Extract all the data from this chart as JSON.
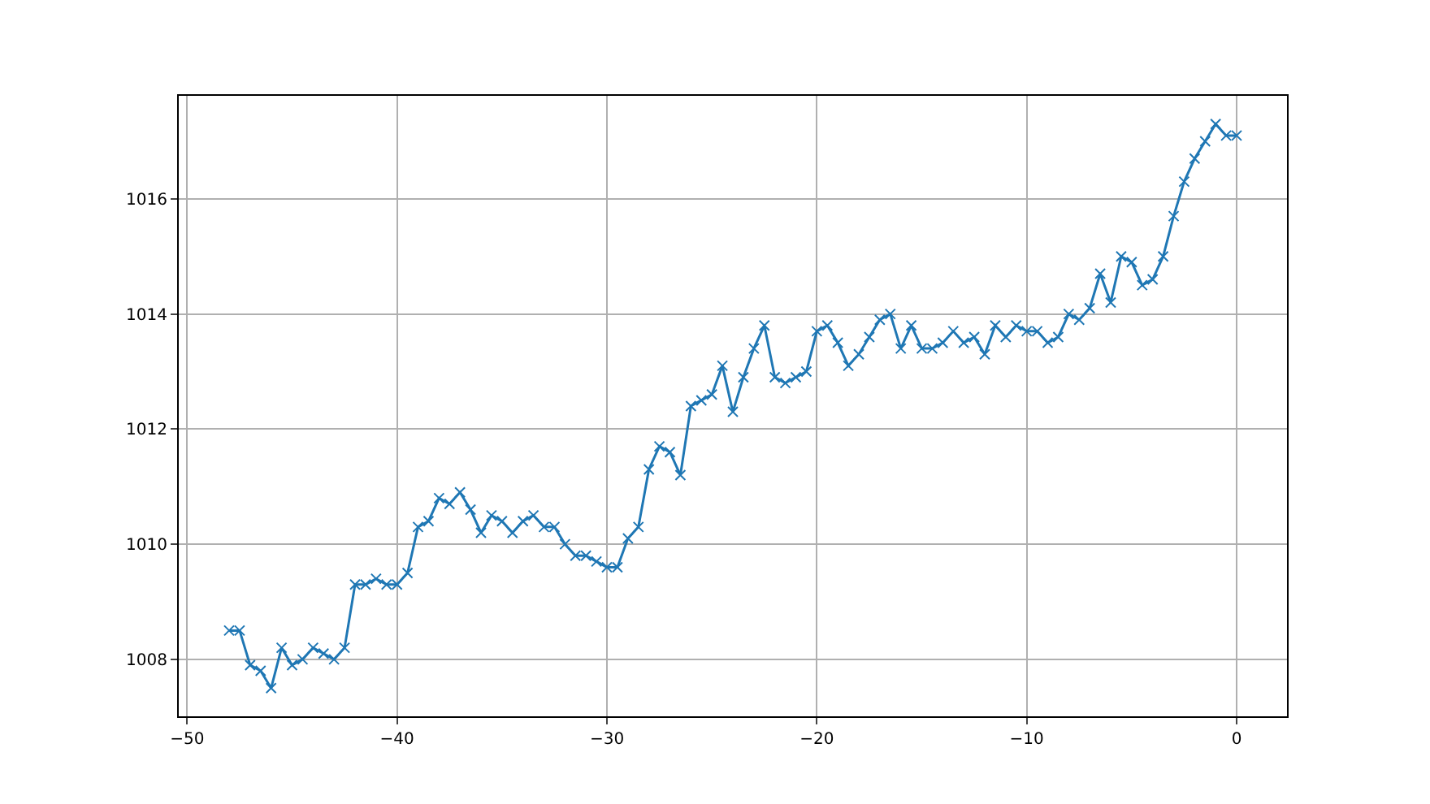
{
  "chart_data": {
    "type": "line",
    "x": [
      -48,
      -47.5,
      -47,
      -46.5,
      -46,
      -45.5,
      -45,
      -44.5,
      -44,
      -43.5,
      -43,
      -42.5,
      -42,
      -41.5,
      -41,
      -40.5,
      -40,
      -39.5,
      -39,
      -38.5,
      -38,
      -37.5,
      -37,
      -36.5,
      -36,
      -35.5,
      -35,
      -34.5,
      -34,
      -33.5,
      -33,
      -32.5,
      -32,
      -31.5,
      -31,
      -30.5,
      -30,
      -29.5,
      -29,
      -28.5,
      -28,
      -27.5,
      -27,
      -26.5,
      -26,
      -25.5,
      -25,
      -24.5,
      -24,
      -23.5,
      -23,
      -22.5,
      -22,
      -21.5,
      -21,
      -20.5,
      -20,
      -19.5,
      -19,
      -18.5,
      -18,
      -17.5,
      -17,
      -16.5,
      -16,
      -15.5,
      -15,
      -14.5,
      -14,
      -13.5,
      -13,
      -12.5,
      -12,
      -11.5,
      -11,
      -10.5,
      -10,
      -9.5,
      -9,
      -8.5,
      -8,
      -7.5,
      -7,
      -6.5,
      -6,
      -5.5,
      -5,
      -4.5,
      -4,
      -3.5,
      -3,
      -2.5,
      -2,
      -1.5,
      -1,
      -0.5,
      0
    ],
    "series": [
      {
        "color": "#1f77b4",
        "values": [
          1008.5,
          1008.5,
          1007.9,
          1007.8,
          1007.5,
          1008.2,
          1007.9,
          1008.0,
          1008.2,
          1008.1,
          1008.0,
          1008.2,
          1009.3,
          1009.3,
          1009.4,
          1009.3,
          1009.3,
          1009.5,
          1010.3,
          1010.4,
          1010.8,
          1010.7,
          1010.9,
          1010.6,
          1010.2,
          1010.5,
          1010.4,
          1010.2,
          1010.4,
          1010.5,
          1010.3,
          1010.3,
          1010.0,
          1009.8,
          1009.8,
          1009.7,
          1009.6,
          1009.6,
          1010.1,
          1010.3,
          1011.3,
          1011.7,
          1011.6,
          1011.2,
          1012.4,
          1012.5,
          1012.6,
          1013.1,
          1012.3,
          1012.9,
          1013.4,
          1013.8,
          1012.9,
          1012.8,
          1012.9,
          1013.0,
          1013.7,
          1013.8,
          1013.5,
          1013.1,
          1013.3,
          1013.6,
          1013.9,
          1014.0,
          1013.4,
          1013.8,
          1013.4,
          1013.4,
          1013.5,
          1013.7,
          1013.5,
          1013.6,
          1013.3,
          1013.8,
          1013.6,
          1013.8,
          1013.7,
          1013.7,
          1013.5,
          1013.6,
          1014.0,
          1013.9,
          1014.1,
          1014.7,
          1014.2,
          1015.0,
          1014.9,
          1014.5,
          1014.6,
          1015.0,
          1015.7,
          1016.3,
          1016.7,
          1017.0,
          1017.3,
          1017.1,
          1017.1
        ]
      }
    ],
    "xlim": [
      -50.4,
      2.4
    ],
    "ylim": [
      1007.01,
      1017.79
    ],
    "xticks": [
      {
        "value": -50,
        "label": "−50"
      },
      {
        "value": -40,
        "label": "−40"
      },
      {
        "value": -30,
        "label": "−30"
      },
      {
        "value": -20,
        "label": "−20"
      },
      {
        "value": -10,
        "label": "−10"
      },
      0
    ],
    "yticks": [
      1008,
      1010,
      1012,
      1014,
      1016
    ],
    "grid": true,
    "marker": "cross",
    "line_style": "solid",
    "legend": false
  }
}
